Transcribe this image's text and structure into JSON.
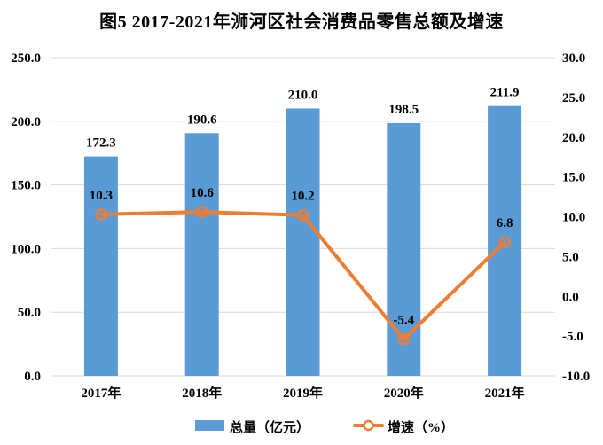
{
  "title": "图5  2017-2021年浉河区社会消费品零售总额及增速",
  "colors": {
    "bar": "#5B9BD5",
    "line": "#ED7D31",
    "grid": "#D9D9D9",
    "text": "#000000",
    "background": "#FFFFFF"
  },
  "chart_data": {
    "type": "bar",
    "subtype": "bar+line combo, dual axis",
    "title": "图5  2017-2021年浉河区社会消费品零售总额及增速",
    "categories": [
      "2017年",
      "2018年",
      "2019年",
      "2020年",
      "2021年"
    ],
    "series": [
      {
        "name": "总量（亿元）",
        "type": "bar",
        "axis": "left",
        "values": [
          172.3,
          190.6,
          210.0,
          198.5,
          211.9
        ],
        "labels": [
          "172.3",
          "190.6",
          "210.0",
          "198.5",
          "211.9"
        ]
      },
      {
        "name": "增速（%）",
        "type": "line",
        "axis": "right",
        "values": [
          10.3,
          10.6,
          10.2,
          -5.4,
          6.8
        ],
        "labels": [
          "10.3",
          "10.6",
          "10.2",
          "-5.4",
          "6.8"
        ]
      }
    ],
    "left_axis": {
      "min": 0,
      "max": 250,
      "step": 50,
      "ticks": [
        "0.0",
        "50.0",
        "100.0",
        "150.0",
        "200.0",
        "250.0"
      ]
    },
    "right_axis": {
      "min": -10,
      "max": 30,
      "step": 5,
      "ticks": [
        "-10.0",
        "-5.0",
        "0.0",
        "5.0",
        "10.0",
        "15.0",
        "20.0",
        "25.0",
        "30.0"
      ]
    },
    "grid": true,
    "legend_position": "bottom"
  }
}
